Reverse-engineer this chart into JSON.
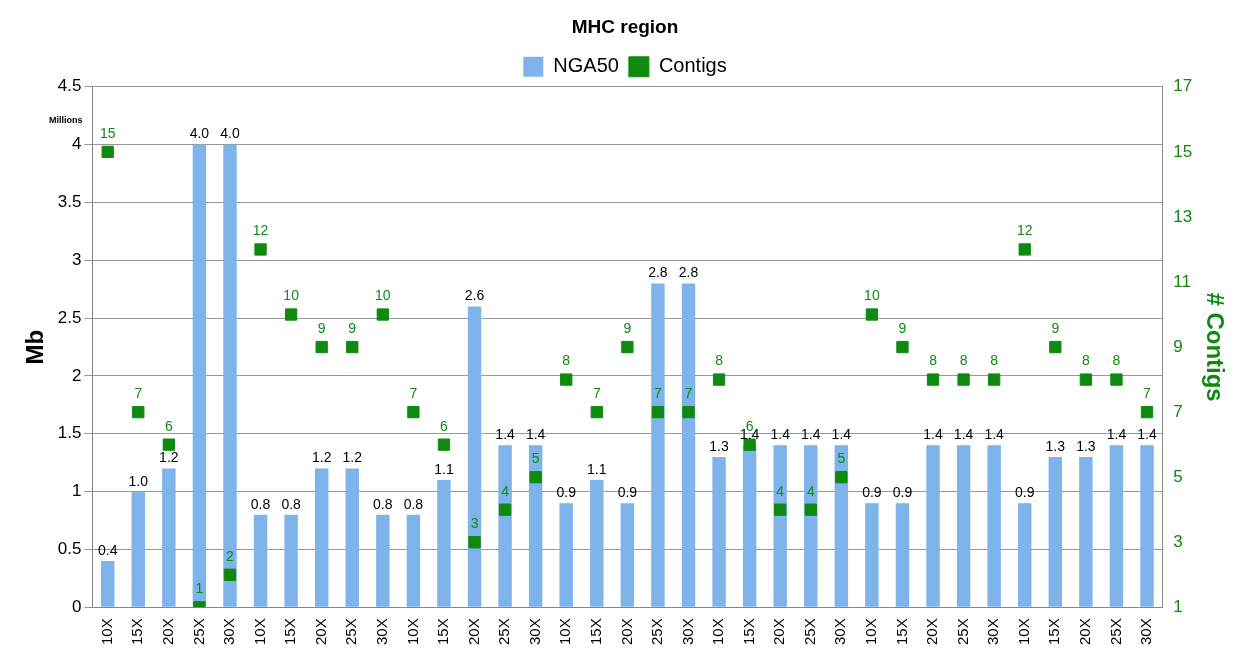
{
  "chart_data": {
    "type": "bar",
    "title": "MHC region",
    "ylabel": "Mb",
    "y2label": "# Contigs",
    "annotations": [
      "Millions"
    ],
    "categories": [
      "10X",
      "15X",
      "20X",
      "25X",
      "30X",
      "10X",
      "15X",
      "20X",
      "25X",
      "30X",
      "10X",
      "15X",
      "20X",
      "25X",
      "30X",
      "10X",
      "15X",
      "20X",
      "25X",
      "30X",
      "10X",
      "15X",
      "20X",
      "25X",
      "30X",
      "10X",
      "15X",
      "20X",
      "25X",
      "30X",
      "10X",
      "15X",
      "20X",
      "25X",
      "30X"
    ],
    "series": [
      {
        "name": "NGA50",
        "color": "#7fb3ec",
        "values": [
          0.4,
          1.0,
          1.2,
          4.0,
          4.0,
          0.8,
          0.8,
          1.2,
          1.2,
          0.8,
          0.8,
          1.1,
          2.6,
          1.4,
          1.4,
          0.9,
          1.1,
          0.9,
          2.8,
          2.8,
          1.3,
          1.4,
          1.4,
          1.4,
          1.4,
          0.9,
          0.9,
          1.4,
          1.4,
          1.4,
          0.9,
          1.3,
          1.3,
          1.4,
          1.4
        ],
        "value_labels": [
          "0.4",
          "1.0",
          "1.2",
          "4.0",
          "4.0",
          "0.8",
          "0.8",
          "1.2",
          "1.2",
          "0.8",
          "0.8",
          "1.1",
          "2.6",
          "1.4",
          "1.4",
          "0.9",
          "1.1",
          "0.9",
          "2.8",
          "2.8",
          "1.3",
          "1.4",
          "1.4",
          "1.4",
          "1.4",
          "0.9",
          "0.9",
          "1.4",
          "1.4",
          "1.4",
          "0.9",
          "1.3",
          "1.3",
          "1.4",
          "1.4"
        ]
      },
      {
        "name": "Contigs",
        "type": "scatter",
        "axis": "y2",
        "color": "#0f8a0f",
        "values": [
          15,
          7,
          6,
          1,
          2,
          12,
          10,
          9,
          9,
          10,
          7,
          6,
          3,
          4,
          5,
          8,
          7,
          9,
          7,
          7,
          8,
          6,
          4,
          4,
          5,
          10,
          9,
          8,
          8,
          8,
          12,
          9,
          8,
          8,
          7
        ],
        "value_labels": [
          "15",
          "7",
          "6",
          "1",
          "2",
          "12",
          "10",
          "9",
          "9",
          "10",
          "7",
          "6",
          "3",
          "4",
          "5",
          "8",
          "7",
          "9",
          "7",
          "7",
          "8",
          "6",
          "4",
          "4",
          "5",
          "10",
          "9",
          "8",
          "8",
          "8",
          "12",
          "9",
          "8",
          "8",
          "7"
        ]
      }
    ],
    "ylim": [
      0,
      4.5
    ],
    "yticks": [
      0,
      0.5,
      1,
      1.5,
      2,
      2.5,
      3,
      3.5,
      4,
      4.5
    ],
    "y2lim": [
      1,
      17
    ],
    "y2ticks": [
      1,
      3,
      5,
      7,
      9,
      11,
      13,
      15,
      17
    ],
    "grid": "y",
    "legend": "top",
    "marker": "square"
  }
}
